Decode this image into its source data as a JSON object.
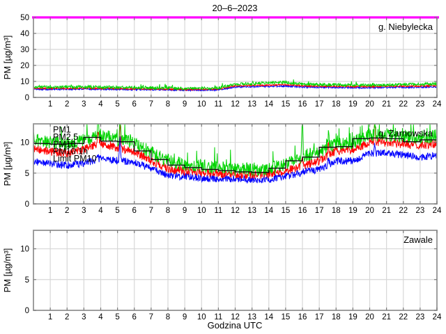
{
  "figure": {
    "title": "20–6–2023",
    "xlabel": "Godzina UTC",
    "ylabel": "PM [µg/m³]"
  },
  "colors": {
    "pm1": "#0000ff",
    "pm25": "#ff0000",
    "pm10": "#00d300",
    "pm10_1h": "#111111",
    "limit": "#ff00ff",
    "grid": "#d7d7d7",
    "box": "#949494",
    "tick": "#7a7a7a",
    "text": "#000000",
    "background": "#ffffff"
  },
  "legend": {
    "entries": [
      {
        "label": "PM1",
        "color": "pm1"
      },
      {
        "label": "PM2.5",
        "color": "pm25"
      },
      {
        "label": "PM10",
        "color": "pm10"
      },
      {
        "label": "PM10 1h",
        "color": "pm10_1h"
      },
      {
        "label": "Limit PM10",
        "color": "limit"
      }
    ]
  },
  "chart_data": [
    {
      "type": "line",
      "station": "g. Niebylecka",
      "xlabel": "Godzina UTC",
      "ylabel": "PM [µg/m³]",
      "xlim": [
        0,
        24
      ],
      "xticks": [
        1,
        2,
        3,
        4,
        5,
        6,
        7,
        8,
        9,
        10,
        11,
        12,
        13,
        14,
        15,
        16,
        17,
        18,
        19,
        20,
        21,
        22,
        23,
        24
      ],
      "ylim": [
        0,
        50
      ],
      "yticks": [
        0,
        10,
        20,
        30,
        40,
        50
      ],
      "grid": true,
      "limit_line": {
        "label": "Limit PM10",
        "value": 50
      },
      "series": [
        {
          "name": "PM1",
          "key": "pm1",
          "color": "pm1",
          "seed": 101,
          "amp": 0.5,
          "hourly": [
            5.2,
            5.1,
            5.1,
            5.2,
            5.1,
            5.0,
            4.9,
            4.9,
            4.8,
            4.6,
            4.6,
            4.8,
            6.5,
            6.7,
            6.9,
            7.1,
            6.5,
            6.3,
            6.2,
            6.1,
            6.1,
            6.2,
            6.3,
            6.4,
            6.6
          ]
        },
        {
          "name": "PM2.5",
          "key": "pm25",
          "color": "pm25",
          "seed": 202,
          "amp": 0.45,
          "hourly": [
            5.7,
            5.6,
            5.6,
            5.7,
            5.6,
            5.5,
            5.4,
            5.3,
            5.2,
            5.0,
            5.0,
            5.2,
            7.2,
            7.5,
            7.7,
            8.0,
            7.2,
            7.0,
            6.9,
            6.8,
            6.8,
            6.9,
            7.0,
            7.1,
            7.4
          ]
        },
        {
          "name": "PM10",
          "key": "pm10",
          "color": "pm10",
          "seed": 303,
          "amp": 0.9,
          "spiky": true,
          "hourly": [
            6.6,
            6.4,
            6.4,
            6.6,
            6.4,
            6.3,
            6.1,
            6.0,
            5.9,
            5.6,
            5.6,
            5.9,
            8.3,
            8.6,
            9.0,
            9.4,
            8.3,
            8.0,
            7.9,
            7.7,
            7.7,
            7.8,
            8.0,
            8.2,
            8.6
          ]
        }
      ],
      "spikes": []
    },
    {
      "type": "line",
      "station": "g. Zarnowska",
      "xlabel": "Godzina UTC",
      "ylabel": "PM [µg/m³]",
      "xlim": [
        0,
        24
      ],
      "xticks": [
        1,
        2,
        3,
        4,
        5,
        6,
        7,
        8,
        9,
        10,
        11,
        12,
        13,
        14,
        15,
        16,
        17,
        18,
        19,
        20,
        21,
        22,
        23,
        24
      ],
      "ylim": [
        0,
        13
      ],
      "yticks": [
        0,
        5,
        10
      ],
      "grid": true,
      "has_legend": true,
      "limit_line": {
        "label": "Limit PM10",
        "value": 50
      },
      "series": [
        {
          "name": "PM1",
          "key": "pm1",
          "color": "pm1",
          "seed": 404,
          "amp": 0.6,
          "hourly": [
            6.9,
            6.5,
            6.3,
            6.6,
            7.3,
            7.0,
            6.8,
            5.7,
            4.7,
            4.4,
            4.2,
            4.1,
            4.0,
            3.9,
            4.0,
            4.5,
            5.1,
            5.6,
            7.0,
            7.0,
            8.2,
            8.2,
            7.9,
            7.6,
            7.9
          ]
        },
        {
          "name": "PM2.5",
          "key": "pm25",
          "color": "pm25",
          "seed": 505,
          "amp": 0.7,
          "hourly": [
            9.0,
            8.5,
            8.2,
            8.8,
            10.0,
            9.0,
            8.5,
            7.0,
            5.7,
            5.3,
            5.1,
            4.9,
            4.8,
            4.7,
            4.8,
            5.4,
            6.2,
            7.0,
            8.6,
            8.8,
            10.0,
            10.0,
            9.7,
            9.5,
            9.8
          ]
        },
        {
          "name": "PM10",
          "key": "pm10",
          "color": "pm10",
          "seed": 606,
          "amp": 1.1,
          "spiky": true,
          "hourly": [
            10.6,
            10.0,
            9.8,
            10.3,
            11.3,
            10.4,
            10.0,
            8.3,
            7.0,
            6.4,
            6.1,
            5.9,
            5.7,
            5.6,
            5.7,
            6.5,
            7.6,
            8.5,
            9.8,
            10.0,
            11.2,
            11.2,
            11.0,
            10.8,
            11.0
          ]
        }
      ],
      "step_series": {
        "name": "PM10 1h",
        "color": "pm10_1h",
        "hourly_means": [
          9.8,
          9.7,
          9.8,
          10.8,
          10.2,
          10.1,
          8.6,
          7.2,
          6.3,
          5.9,
          5.6,
          5.4,
          5.2,
          5.1,
          5.8,
          7.0,
          7.6,
          9.2,
          9.3,
          10.6,
          10.7,
          10.6,
          10.1,
          10.4
        ]
      },
      "spikes": [
        {
          "x": 3.85,
          "pm10": 3.2,
          "pm25": 2.2,
          "pm1": 0.6
        },
        {
          "x": 5.15,
          "pm10": 4.5,
          "pm25": 4.0,
          "pm1": 4.0
        },
        {
          "x": 16.0,
          "pm10": 7.0,
          "pm25": 0.8,
          "pm1": 0.5
        },
        {
          "x": 17.55,
          "pm10": 2.0,
          "pm25": 1.8,
          "pm1": 1.0
        },
        {
          "x": 20.3,
          "pm10": 2.5,
          "pm25": 3.2,
          "pm1": 1.2
        }
      ]
    },
    {
      "type": "line",
      "station": "Zawale",
      "xlabel": "Godzina UTC",
      "ylabel": "PM [µg/m³]",
      "xlim": [
        0,
        24
      ],
      "xticks": [
        1,
        2,
        3,
        4,
        5,
        6,
        7,
        8,
        9,
        10,
        11,
        12,
        13,
        14,
        15,
        16,
        17,
        18,
        19,
        20,
        21,
        22,
        23,
        24
      ],
      "ylim": [
        0,
        13
      ],
      "yticks": [
        0,
        5,
        10
      ],
      "grid": true,
      "series": [],
      "spikes": []
    }
  ]
}
